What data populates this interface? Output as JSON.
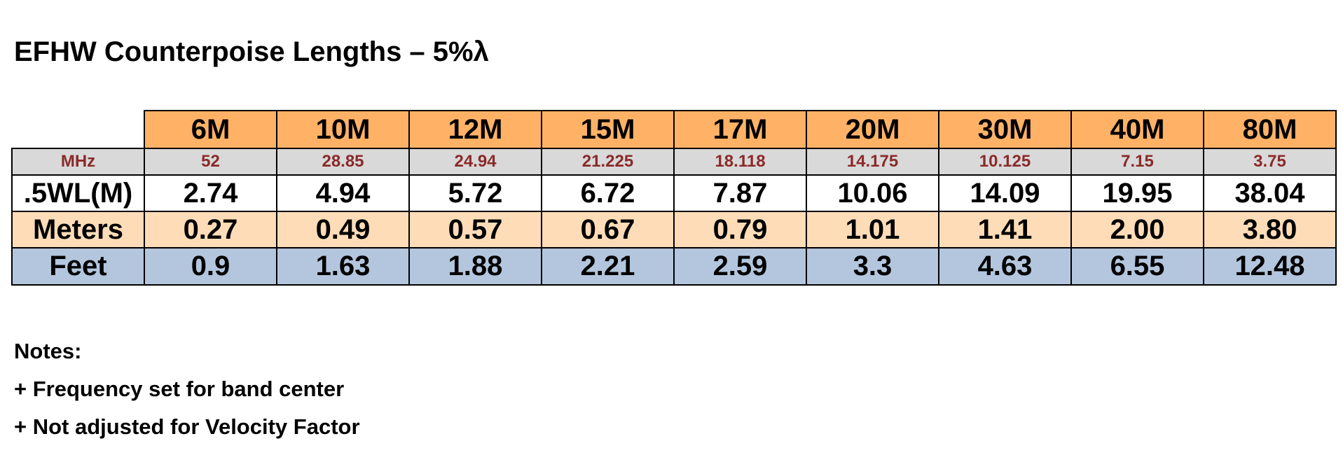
{
  "title": "EFHW Counterpoise Lengths – 5%λ",
  "table": {
    "columns": [
      "6M",
      "10M",
      "12M",
      "15M",
      "17M",
      "20M",
      "30M",
      "40M",
      "80M"
    ],
    "rows": [
      {
        "label": "MHz",
        "values": [
          "52",
          "28.85",
          "24.94",
          "21.225",
          "18.118",
          "14.175",
          "10.125",
          "7.15",
          "3.75"
        ]
      },
      {
        "label": ".5WL(M)",
        "values": [
          "2.74",
          "4.94",
          "5.72",
          "6.72",
          "7.87",
          "10.06",
          "14.09",
          "19.95",
          "38.04"
        ]
      },
      {
        "label": "Meters",
        "values": [
          "0.27",
          "0.49",
          "0.57",
          "0.67",
          "0.79",
          "1.01",
          "1.41",
          "2.00",
          "3.80"
        ]
      },
      {
        "label": "Feet",
        "values": [
          "0.9",
          "1.63",
          "1.88",
          "2.21",
          "2.59",
          "3.3",
          "4.63",
          "6.55",
          "12.48"
        ]
      }
    ]
  },
  "notes": {
    "heading": "Notes:",
    "items": [
      "+ Frequency set for band center",
      "+ Not adjusted for Velocity Factor"
    ]
  },
  "colors": {
    "header_band": "#ffb266",
    "mhz_row": "#d9d9d9",
    "mhz_text": "#8b2a2a",
    "meters_row": "#ffdcb8",
    "feet_row": "#b3c6dd"
  }
}
